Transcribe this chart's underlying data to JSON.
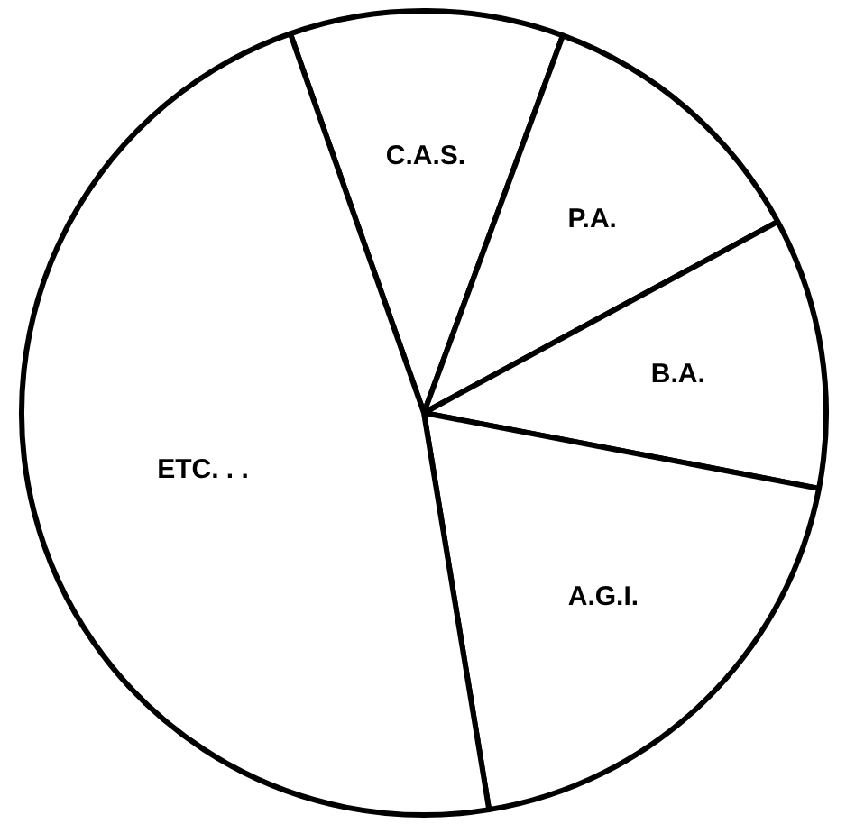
{
  "chart_data": {
    "type": "pie",
    "categories": [
      "C.A.S.",
      "P.A.",
      "B.A.",
      "A.G.I.",
      "ETC. . ."
    ],
    "values": [
      11.0,
      11.5,
      10.9,
      19.4,
      47.2
    ],
    "colors": [
      "#ffffff",
      "#ffffff",
      "#ffffff",
      "#ffffff",
      "#ffffff"
    ]
  }
}
